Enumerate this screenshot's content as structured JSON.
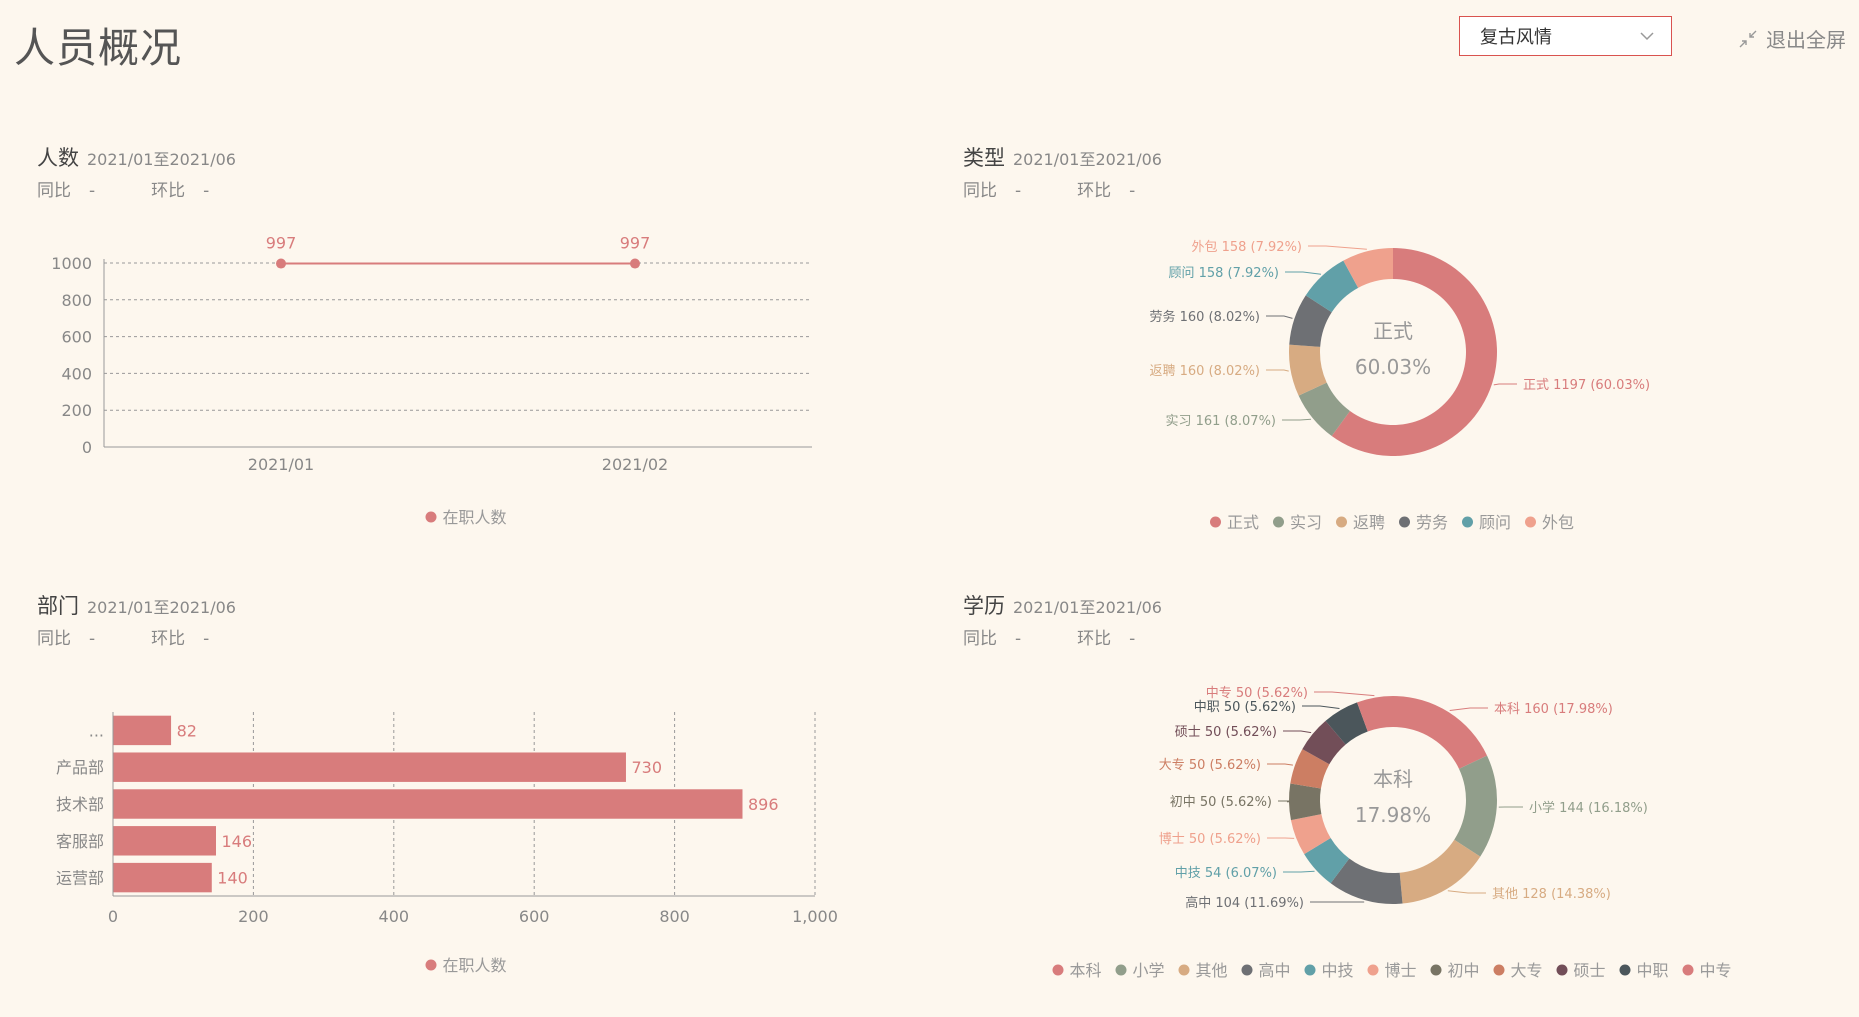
{
  "header": {
    "title": "人员概况",
    "theme_value": "复古风情",
    "exit_fullscreen": "退出全屏"
  },
  "colors": {
    "primary": "#d87c7c",
    "palette": {
      "正式": "#d87c7c",
      "实习": "#919e8b",
      "返聘": "#d7ab82",
      "劳务": "#6e7074",
      "顾问": "#61a0a8",
      "外包": "#efa18d",
      "本科": "#d87c7c",
      "小学": "#919e8b",
      "其他": "#d7ab82",
      "高中": "#6e7074",
      "中技": "#61a0a8",
      "博士": "#efa18d",
      "初中": "#787464",
      "大专": "#cc7e63",
      "硕士": "#724e58",
      "中职": "#4b565b",
      "中专": "#d87c7c"
    }
  },
  "panels": {
    "headcount": {
      "title": "人数",
      "range": "2021/01至2021/06",
      "yoy_label": "同比",
      "yoy_value": "-",
      "mom_label": "环比",
      "mom_value": "-"
    },
    "type": {
      "title": "类型",
      "range": "2021/01至2021/06",
      "yoy_label": "同比",
      "yoy_value": "-",
      "mom_label": "环比",
      "mom_value": "-"
    },
    "dept": {
      "title": "部门",
      "range": "2021/01至2021/06",
      "yoy_label": "同比",
      "yoy_value": "-",
      "mom_label": "环比",
      "mom_value": "-"
    },
    "edu": {
      "title": "学历",
      "range": "2021/01至2021/06",
      "yoy_label": "同比",
      "yoy_value": "-",
      "mom_label": "环比",
      "mom_value": "-"
    }
  },
  "chart_data": [
    {
      "id": "headcount",
      "type": "line",
      "x": [
        "2021/01",
        "2021/02"
      ],
      "series": [
        {
          "name": "在职人数",
          "values": [
            997,
            997
          ]
        }
      ],
      "ylim": [
        0,
        1000
      ],
      "yticks": [
        0,
        200,
        400,
        600,
        800,
        1000
      ],
      "grid": true,
      "legend": "bottom"
    },
    {
      "id": "type",
      "type": "pie",
      "donut": true,
      "center_label": "正式",
      "center_value": "60.03%",
      "slices": [
        {
          "name": "正式",
          "value": 1197,
          "label": "正式 1197 (60.03%)"
        },
        {
          "name": "实习",
          "value": 161,
          "label": "实习 161 (8.07%)"
        },
        {
          "name": "返聘",
          "value": 160,
          "label": "返聘 160 (8.02%)"
        },
        {
          "name": "劳务",
          "value": 160,
          "label": "劳务 160 (8.02%)"
        },
        {
          "name": "顾问",
          "value": 158,
          "label": "顾问 158 (7.92%)"
        },
        {
          "name": "外包",
          "value": 158,
          "label": "外包 158 (7.92%)"
        }
      ],
      "legend": "bottom"
    },
    {
      "id": "dept",
      "type": "bar",
      "orientation": "horizontal",
      "categories": [
        "...",
        "产品部",
        "技术部",
        "客服部",
        "运营部"
      ],
      "series": [
        {
          "name": "在职人数",
          "values": [
            82,
            730,
            896,
            146,
            140
          ]
        }
      ],
      "xlim": [
        0,
        1000
      ],
      "xticks": [
        0,
        200,
        400,
        600,
        800,
        1000
      ],
      "xtick_labels": [
        "0",
        "200",
        "400",
        "600",
        "800",
        "1,000"
      ],
      "grid": true,
      "legend": "bottom"
    },
    {
      "id": "edu",
      "type": "pie",
      "donut": true,
      "center_label": "本科",
      "center_value": "17.98%",
      "slices": [
        {
          "name": "本科",
          "value": 160,
          "label": "本科 160 (17.98%)"
        },
        {
          "name": "小学",
          "value": 144,
          "label": "小学 144 (16.18%)"
        },
        {
          "name": "其他",
          "value": 128,
          "label": "其他 128 (14.38%)"
        },
        {
          "name": "高中",
          "value": 104,
          "label": "高中 104 (11.69%)"
        },
        {
          "name": "中技",
          "value": 54,
          "label": "中技 54 (6.07%)"
        },
        {
          "name": "博士",
          "value": 50,
          "label": "博士 50 (5.62%)"
        },
        {
          "name": "初中",
          "value": 50,
          "label": "初中 50 (5.62%)"
        },
        {
          "name": "大专",
          "value": 50,
          "label": "大专 50 (5.62%)"
        },
        {
          "name": "硕士",
          "value": 50,
          "label": "硕士 50 (5.62%)"
        },
        {
          "name": "中职",
          "value": 50,
          "label": "中职 50 (5.62%)"
        },
        {
          "name": "中专",
          "value": 50,
          "label": "中专 50 (5.62%)"
        }
      ],
      "legend": "bottom"
    }
  ]
}
